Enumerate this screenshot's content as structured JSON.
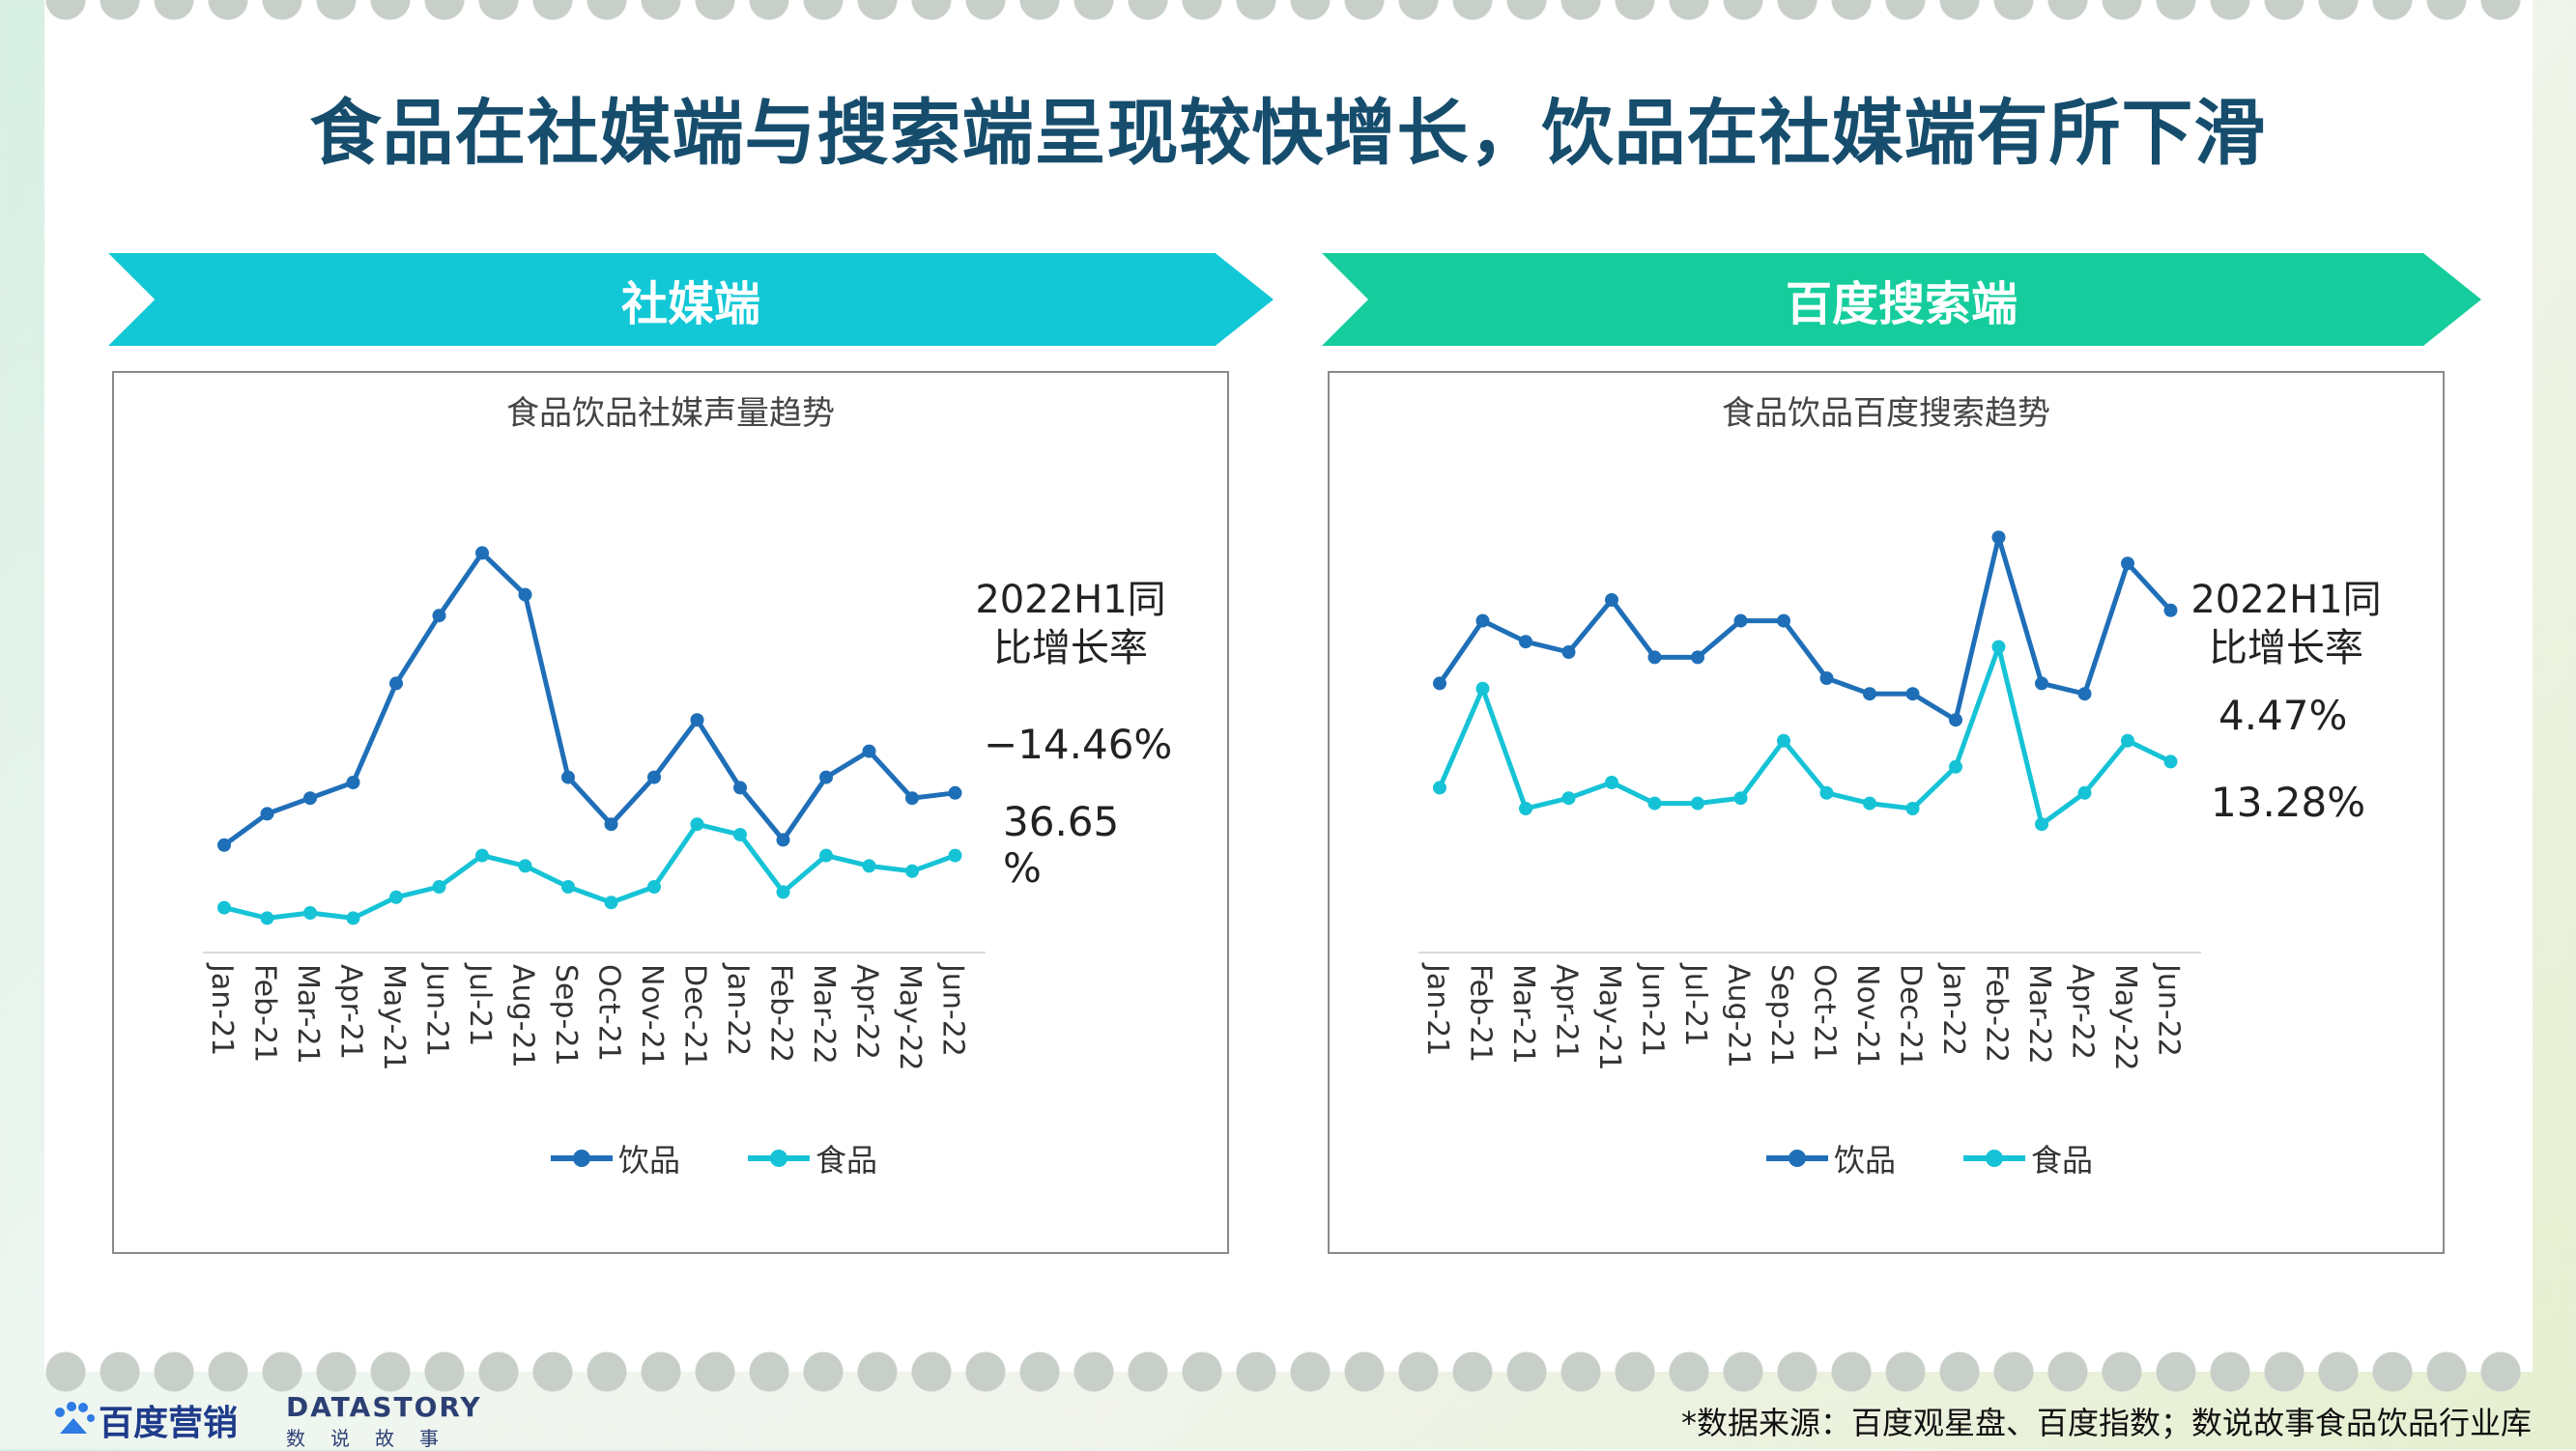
{
  "title": "食品在社媒端与搜索端呈现较快增长，饮品在社媒端有所下滑",
  "banners": {
    "left": "社媒端",
    "right": "百度搜索端"
  },
  "colors": {
    "drink": "#1f6fb8",
    "food": "#16c3d6",
    "banner_left": "#12c8d6",
    "banner_right": "#15cd9c",
    "title": "#164d6d"
  },
  "yoy_heading": [
    "2022H1同",
    "比增长率"
  ],
  "footer": {
    "source": "*数据来源：百度观星盘、百度指数；数说故事食品饮品行业库",
    "logo_baidu": "百度营销",
    "logo_ds_main": "DATASTORY",
    "logo_ds_sub": "数说故事"
  },
  "chart_data": [
    {
      "type": "line",
      "title": "食品饮品社媒声量趋势",
      "categories": [
        "Jan-21",
        "Feb-21",
        "Mar-21",
        "Apr-21",
        "May-21",
        "Jun-21",
        "Jul-21",
        "Aug-21",
        "Sep-21",
        "Oct-21",
        "Nov-21",
        "Dec-21",
        "Jan-22",
        "Feb-22",
        "Mar-22",
        "Apr-22",
        "May-22",
        "Jun-22"
      ],
      "series": [
        {
          "name": "饮品",
          "values": [
            28,
            34,
            37,
            40,
            59,
            72,
            84,
            76,
            41,
            32,
            41,
            52,
            39,
            29,
            41,
            46,
            37,
            38
          ]
        },
        {
          "name": "食品",
          "values": [
            16,
            14,
            15,
            14,
            18,
            20,
            26,
            24,
            20,
            17,
            20,
            32,
            30,
            19,
            26,
            24,
            23,
            26
          ]
        }
      ],
      "ylim": [
        0,
        100
      ],
      "grid": false,
      "legend": "bottom",
      "yoy": {
        "drink": "−14.46%",
        "food_line1": "36.65",
        "food_line2": "%"
      }
    },
    {
      "type": "line",
      "title": "食品饮品百度搜索趋势",
      "categories": [
        "Jan-21",
        "Feb-21",
        "Mar-21",
        "Apr-21",
        "May-21",
        "Jun-21",
        "Jul-21",
        "Aug-21",
        "Sep-21",
        "Oct-21",
        "Nov-21",
        "Dec-21",
        "Jan-22",
        "Feb-22",
        "Mar-22",
        "Apr-22",
        "May-22",
        "Jun-22"
      ],
      "series": [
        {
          "name": "饮品",
          "values": [
            59,
            71,
            67,
            65,
            75,
            64,
            64,
            71,
            71,
            60,
            57,
            57,
            52,
            87,
            59,
            57,
            82,
            73
          ]
        },
        {
          "name": "食品",
          "values": [
            39,
            58,
            35,
            37,
            40,
            36,
            36,
            37,
            48,
            38,
            36,
            35,
            43,
            66,
            32,
            38,
            48,
            44
          ]
        }
      ],
      "ylim": [
        0,
        100
      ],
      "grid": false,
      "legend": "bottom",
      "yoy": {
        "drink": "4.47%",
        "food": "13.28%"
      }
    }
  ]
}
